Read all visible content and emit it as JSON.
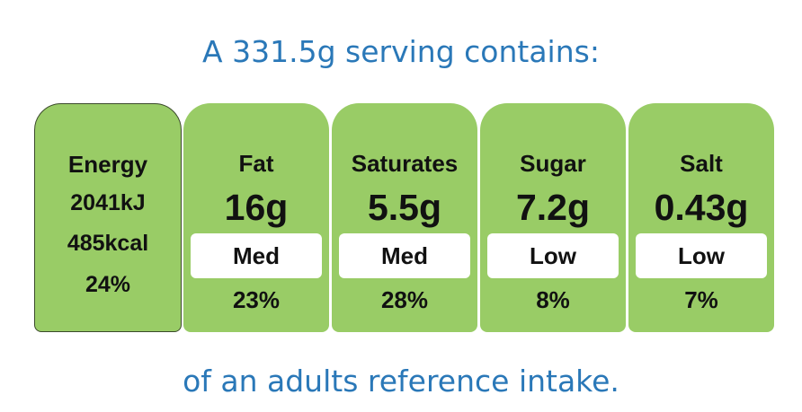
{
  "header": {
    "title": "A 331.5g serving contains:"
  },
  "energy": {
    "label": "Energy",
    "kj": "2041kJ",
    "kcal": "485kcal",
    "percent": "24%"
  },
  "nutrients": [
    {
      "name": "Fat",
      "amount": "16g",
      "level": "Med",
      "percent": "23%"
    },
    {
      "name": "Saturates",
      "amount": "5.5g",
      "level": "Med",
      "percent": "28%"
    },
    {
      "name": "Sugar",
      "amount": "7.2g",
      "level": "Low",
      "percent": "8%"
    },
    {
      "name": "Salt",
      "amount": "0.43g",
      "level": "Low",
      "percent": "7%"
    }
  ],
  "footer": {
    "text": "of an adults reference intake."
  }
}
